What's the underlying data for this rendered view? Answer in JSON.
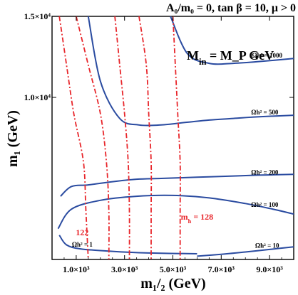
{
  "chart_data": {
    "type": "contour",
    "title": "A₀/m₀ = 0, tan β = 10, μ > 0",
    "inset_label": "M_in = M_P GeV",
    "xlabel": "m₁/₂ (GeV)",
    "ylabel": "m₁ (GeV)",
    "xlim": [
      0,
      10000
    ],
    "ylim": [
      0,
      15000
    ],
    "x_ticks": [
      {
        "value": 1000,
        "label": "1.0×10³"
      },
      {
        "value": 3000,
        "label": "3.0×10³"
      },
      {
        "value": 5000,
        "label": "5.0×10³"
      },
      {
        "value": 7000,
        "label": "7.0×10³"
      },
      {
        "value": 9000,
        "label": "9.0×10³"
      }
    ],
    "y_ticks": [
      {
        "value": 10000,
        "label": "1.0×10⁴"
      },
      {
        "value": 15000,
        "label": "1.5×10⁴"
      }
    ],
    "colors": {
      "relic_density": "#2a4ba0",
      "higgs_mass": "#e8262b"
    },
    "relic_density_contours": [
      {
        "label": "Ωh² = 1",
        "label_at": [
          1250,
          780
        ],
        "x": [
          300,
          600,
          1200,
          2500,
          4000,
          6000
        ],
        "y": [
          1500,
          900,
          650,
          500,
          400,
          350
        ]
      },
      {
        "label": "Ωh² = 10",
        "label_at": [
          8900,
          720
        ],
        "x": [
          6000,
          7000,
          8000,
          9000,
          10000
        ],
        "y": [
          200,
          320,
          460,
          620,
          780
        ]
      },
      {
        "label": "Ωh² = 100",
        "label_at": [
          8800,
          3250
        ],
        "x": [
          250,
          800,
          2000,
          3500,
          5000,
          6500,
          8000,
          9000,
          10000
        ],
        "y": [
          1900,
          3100,
          3650,
          3900,
          3950,
          3800,
          3450,
          3150,
          2800
        ]
      },
      {
        "label": "Ωh² = 200",
        "label_at": [
          8800,
          5250
        ],
        "x": [
          350,
          800,
          1500,
          2500,
          3500,
          4500,
          5500,
          6500,
          7500,
          8500,
          10000
        ],
        "y": [
          3900,
          4500,
          4600,
          4800,
          4950,
          5000,
          5050,
          5100,
          5150,
          5200,
          5250
        ]
      },
      {
        "label": "Ωh² = 500",
        "label_at": [
          8800,
          8950
        ],
        "x": [
          1500,
          2000,
          2800,
          3600,
          4500,
          5500,
          6500,
          7500,
          8500,
          10000
        ],
        "y": [
          15000,
          11000,
          8700,
          8300,
          8300,
          8450,
          8600,
          8700,
          8800,
          8900
        ]
      },
      {
        "label": "Ωh² = 1000",
        "label_at": [
          8900,
          12450
        ],
        "x": [
          4900,
          5600,
          6500,
          7500,
          8500,
          10000
        ],
        "y": [
          15000,
          12700,
          12100,
          12100,
          12200,
          12400
        ]
      }
    ],
    "higgs_mass_contours": [
      {
        "label": "122",
        "label_at": [
          1250,
          1500
        ],
        "x": [
          300,
          600,
          900,
          1300,
          1400,
          1500
        ],
        "y": [
          15000,
          12000,
          9000,
          6000,
          3000,
          0
        ]
      },
      {
        "label": "",
        "x": [
          1000,
          1500,
          2000,
          2250,
          2350,
          2350
        ],
        "y": [
          15000,
          12000,
          9000,
          6000,
          3000,
          0
        ]
      },
      {
        "label": "",
        "x": [
          2600,
          2800,
          3000,
          3150,
          3200,
          3200
        ],
        "y": [
          15000,
          12000,
          9000,
          6000,
          3000,
          0
        ]
      },
      {
        "label": "",
        "x": [
          3600,
          3900,
          4000,
          4100,
          4100,
          4100
        ],
        "y": [
          15000,
          12000,
          9000,
          6000,
          3000,
          0
        ]
      },
      {
        "label": "m_h = 128",
        "label_at": [
          6000,
          2450
        ],
        "x": [
          5000,
          5100,
          5200,
          5300,
          5300,
          5300
        ],
        "y": [
          15000,
          12000,
          9000,
          6000,
          3000,
          0
        ]
      }
    ]
  }
}
